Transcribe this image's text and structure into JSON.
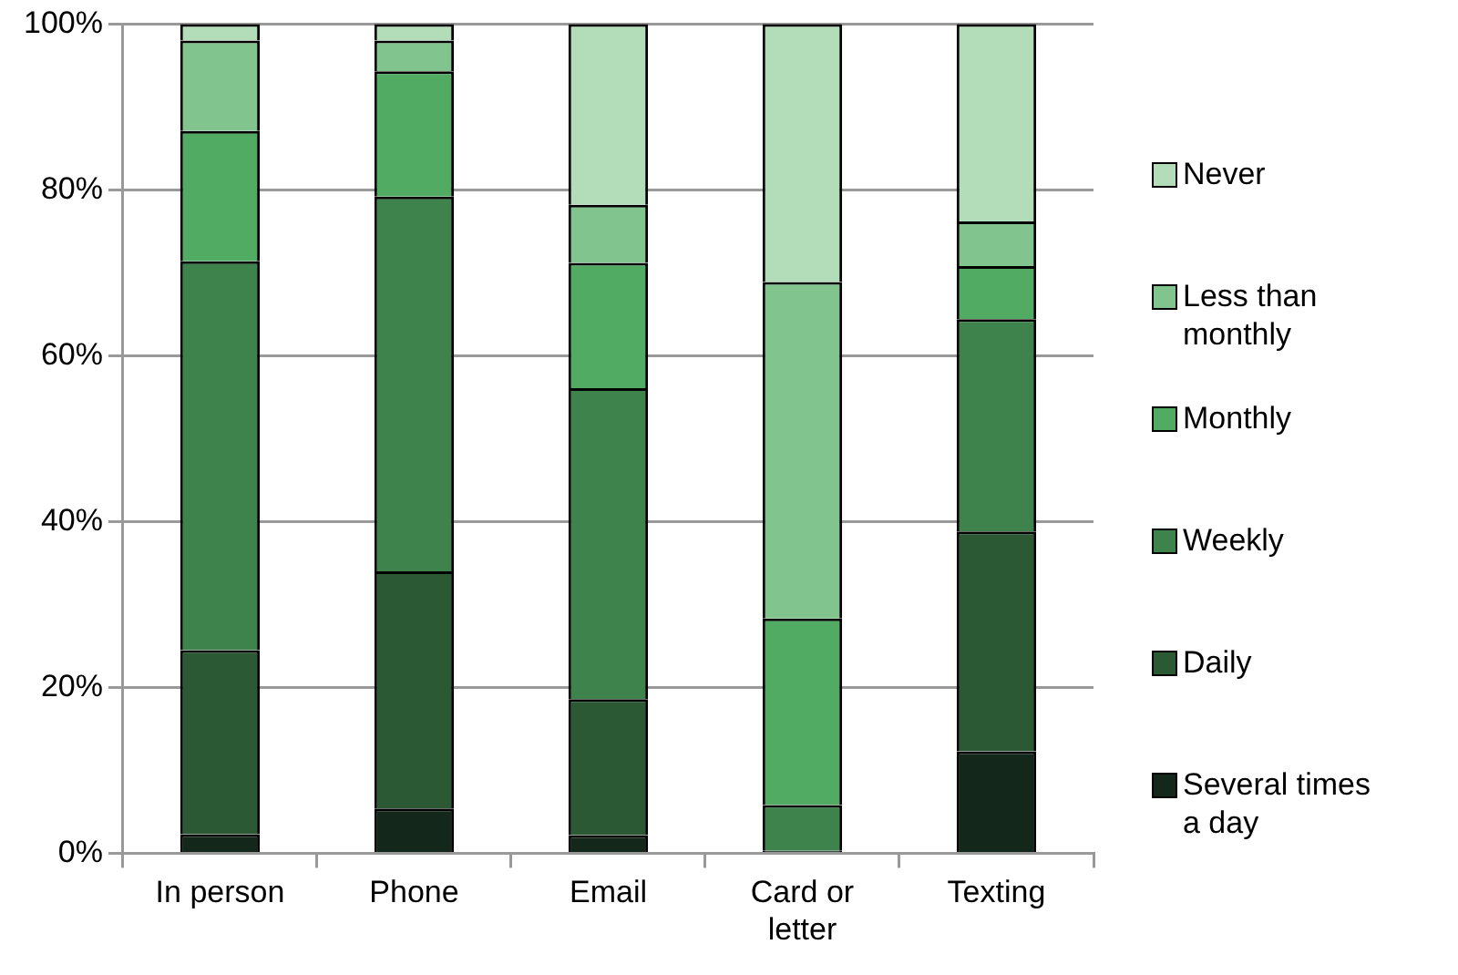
{
  "chart_data": {
    "type": "bar",
    "stacked": true,
    "categories": [
      "In person",
      "Phone",
      "Email",
      "Card or letter",
      "Texting"
    ],
    "series": [
      {
        "name": "Several times a day",
        "color": "#13271a",
        "values": [
          2.3,
          5.4,
          2.2,
          0.3,
          12.3
        ]
      },
      {
        "name": "Daily",
        "color": "#2a5934",
        "values": [
          22.2,
          28.6,
          16.4,
          0,
          26.5
        ]
      },
      {
        "name": "Weekly",
        "color": "#3e834c",
        "values": [
          46.9,
          45.2,
          37.5,
          5.5,
          25.6
        ]
      },
      {
        "name": "Monthly",
        "color": "#52ab62",
        "values": [
          15.7,
          15.1,
          15.1,
          22.5,
          6.4
        ]
      },
      {
        "name": "Less than monthly",
        "color": "#81c48d",
        "values": [
          10.9,
          3.7,
          7.0,
          40.6,
          5.4
        ]
      },
      {
        "name": "Never",
        "color": "#b3dcb8",
        "values": [
          2.0,
          2.0,
          21.8,
          31.1,
          23.8
        ]
      }
    ],
    "ylim": [
      0,
      100
    ],
    "yticks": [
      {
        "value": 0,
        "label": "0%"
      },
      {
        "value": 20,
        "label": "20%"
      },
      {
        "value": 40,
        "label": "40%"
      },
      {
        "value": 60,
        "label": "60%"
      },
      {
        "value": 80,
        "label": "80%"
      },
      {
        "value": 100,
        "label": "100%"
      }
    ],
    "grid": "y",
    "legend": "right"
  }
}
